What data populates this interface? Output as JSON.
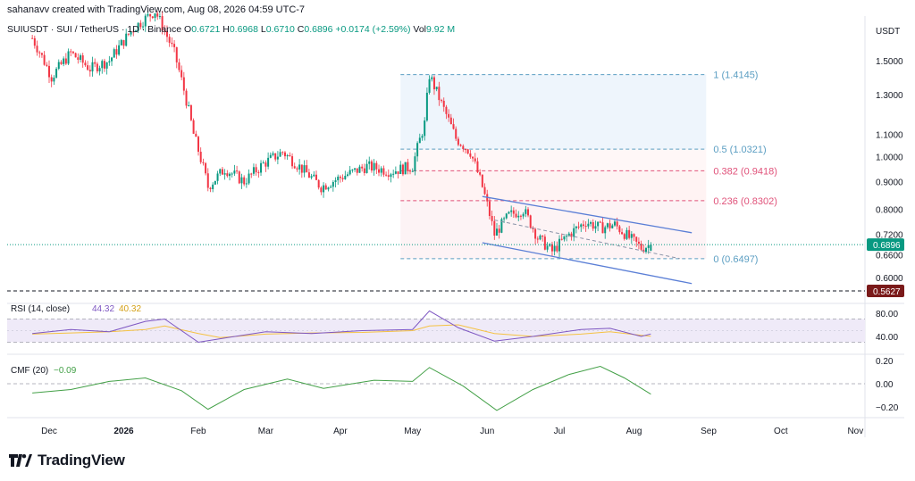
{
  "header": {
    "credit": "sahanavv created with TradingView.com, Aug 08, 2026 04:59 UTC-7",
    "symbol_label": "SUIUSDT · SUI / TetherUS · 1D · Binance",
    "ohlc": {
      "o_key": "O",
      "o": "0.6721",
      "h_key": "H",
      "h": "0.6968",
      "l_key": "L",
      "l": "0.6710",
      "c_key": "C",
      "c": "0.6896",
      "change": "+0.0174 (+2.59%)",
      "vol_key": "Vol",
      "vol": "9.92 M"
    }
  },
  "brand": {
    "name": "TradingView"
  },
  "colors": {
    "up": "#089981",
    "down": "#f23645",
    "fib_blue": "#5b9ec2",
    "fib_red": "#e0527a",
    "channel": "#5b7fd6",
    "rsi": "#7e57c2",
    "rsi_ma": "#f5c242",
    "cmf": "#43a047"
  },
  "chart_data": {
    "type": "candlestick",
    "panes": [
      "price",
      "RSI",
      "CMF"
    ],
    "x_ticks": [
      "Dec",
      "2026",
      "Feb",
      "Mar",
      "Apr",
      "May",
      "Jun",
      "Jul",
      "Aug",
      "Sep",
      "Oct",
      "Nov"
    ],
    "price": {
      "currency": "USDT",
      "scale": "log",
      "y_ticks": [
        "1.5000",
        "1.3000",
        "1.1000",
        "1.0000",
        "0.9000",
        "0.8000",
        "0.7200",
        "0.6600",
        "0.6000"
      ],
      "y_tick_values": [
        1.5,
        1.3,
        1.1,
        1.0,
        0.9,
        0.8,
        0.72,
        0.66,
        0.6
      ],
      "last_price": "0.6896",
      "horizontal_line": "0.5627",
      "close_trend": [
        {
          "x": "2025-11-24",
          "close": 1.65
        },
        {
          "x": "2025-12-02",
          "close": 1.4
        },
        {
          "x": "2025-12-10",
          "close": 1.55
        },
        {
          "x": "2025-12-18",
          "close": 1.45
        },
        {
          "x": "2025-12-26",
          "close": 1.5
        },
        {
          "x": "2026-01-05",
          "close": 1.72
        },
        {
          "x": "2026-01-14",
          "close": 1.85
        },
        {
          "x": "2026-01-22",
          "close": 1.55
        },
        {
          "x": "2026-01-30",
          "close": 1.1
        },
        {
          "x": "2026-02-05",
          "close": 0.88
        },
        {
          "x": "2026-02-12",
          "close": 0.95
        },
        {
          "x": "2026-02-20",
          "close": 0.9
        },
        {
          "x": "2026-02-28",
          "close": 0.97
        },
        {
          "x": "2026-03-08",
          "close": 1.02
        },
        {
          "x": "2026-03-16",
          "close": 0.95
        },
        {
          "x": "2026-03-24",
          "close": 0.88
        },
        {
          "x": "2026-04-02",
          "close": 0.92
        },
        {
          "x": "2026-04-12",
          "close": 0.96
        },
        {
          "x": "2026-04-22",
          "close": 0.94
        },
        {
          "x": "2026-05-01",
          "close": 0.96
        },
        {
          "x": "2026-05-06",
          "close": 1.15
        },
        {
          "x": "2026-05-08",
          "close": 1.41
        },
        {
          "x": "2026-05-13",
          "close": 1.25
        },
        {
          "x": "2026-05-19",
          "close": 1.08
        },
        {
          "x": "2026-05-25",
          "close": 1.02
        },
        {
          "x": "2026-05-30",
          "close": 0.88
        },
        {
          "x": "2026-06-04",
          "close": 0.72
        },
        {
          "x": "2026-06-10",
          "close": 0.78
        },
        {
          "x": "2026-06-16",
          "close": 0.8
        },
        {
          "x": "2026-06-22",
          "close": 0.71
        },
        {
          "x": "2026-06-28",
          "close": 0.67
        },
        {
          "x": "2026-07-05",
          "close": 0.72
        },
        {
          "x": "2026-07-12",
          "close": 0.76
        },
        {
          "x": "2026-07-18",
          "close": 0.74
        },
        {
          "x": "2026-07-24",
          "close": 0.75
        },
        {
          "x": "2026-07-30",
          "close": 0.71
        },
        {
          "x": "2026-08-04",
          "close": 0.68
        },
        {
          "x": "2026-08-08",
          "close": 0.6896
        }
      ],
      "fibonacci": [
        {
          "label": "1 (1.4145)",
          "value": 1.4145,
          "color": "#5b9ec2"
        },
        {
          "label": "0.5 (1.0321)",
          "value": 1.0321,
          "color": "#5b9ec2"
        },
        {
          "label": "0.382 (0.9418)",
          "value": 0.9418,
          "color": "#e0527a"
        },
        {
          "label": "0.236 (0.8302)",
          "value": 0.8302,
          "color": "#e0527a"
        },
        {
          "label": "0 (0.6497)",
          "value": 0.6497,
          "color": "#5b9ec2"
        }
      ],
      "channel": {
        "upper": [
          {
            "x": "2026-05-30",
            "y": 0.845
          },
          {
            "x": "2026-08-25",
            "y": 0.725
          }
        ],
        "middle": [
          {
            "x": "2026-06-04",
            "y": 0.765
          },
          {
            "x": "2026-08-20",
            "y": 0.65
          }
        ],
        "lower": [
          {
            "x": "2026-05-30",
            "y": 0.695
          },
          {
            "x": "2026-08-25",
            "y": 0.585
          }
        ]
      }
    },
    "rsi": {
      "label": "RSI (14, close)",
      "value": "44.32",
      "ma_value": "40.32",
      "y_ticks": [
        "80.00",
        "40.00"
      ],
      "bands": [
        70,
        30
      ],
      "series": [
        {
          "x": "2025-11-24",
          "rsi": 45,
          "ma": 44
        },
        {
          "x": "2025-12-10",
          "rsi": 52,
          "ma": 46
        },
        {
          "x": "2025-12-26",
          "rsi": 48,
          "ma": 48
        },
        {
          "x": "2026-01-10",
          "rsi": 66,
          "ma": 52
        },
        {
          "x": "2026-01-18",
          "rsi": 70,
          "ma": 58
        },
        {
          "x": "2026-02-01",
          "rsi": 30,
          "ma": 45
        },
        {
          "x": "2026-02-10",
          "rsi": 36,
          "ma": 38
        },
        {
          "x": "2026-03-01",
          "rsi": 48,
          "ma": 44
        },
        {
          "x": "2026-03-20",
          "rsi": 45,
          "ma": 46
        },
        {
          "x": "2026-04-10",
          "rsi": 50,
          "ma": 47
        },
        {
          "x": "2026-05-01",
          "rsi": 52,
          "ma": 50
        },
        {
          "x": "2026-05-08",
          "rsi": 84,
          "ma": 58
        },
        {
          "x": "2026-05-20",
          "rsi": 55,
          "ma": 60
        },
        {
          "x": "2026-06-04",
          "rsi": 32,
          "ma": 45
        },
        {
          "x": "2026-06-20",
          "rsi": 40,
          "ma": 40
        },
        {
          "x": "2026-07-10",
          "rsi": 52,
          "ma": 44
        },
        {
          "x": "2026-07-22",
          "rsi": 54,
          "ma": 48
        },
        {
          "x": "2026-08-04",
          "rsi": 40,
          "ma": 42
        },
        {
          "x": "2026-08-08",
          "rsi": 44.32,
          "ma": 40.32
        }
      ]
    },
    "cmf": {
      "label": "CMF (20)",
      "value": "−0.09",
      "y_ticks": [
        "0.20",
        "0.00",
        "−0.20"
      ],
      "series": [
        {
          "x": "2025-11-24",
          "v": -0.08
        },
        {
          "x": "2025-12-10",
          "v": -0.05
        },
        {
          "x": "2025-12-26",
          "v": 0.02
        },
        {
          "x": "2026-01-10",
          "v": 0.05
        },
        {
          "x": "2026-01-25",
          "v": -0.06
        },
        {
          "x": "2026-02-05",
          "v": -0.22
        },
        {
          "x": "2026-02-20",
          "v": -0.05
        },
        {
          "x": "2026-03-10",
          "v": 0.04
        },
        {
          "x": "2026-03-25",
          "v": -0.04
        },
        {
          "x": "2026-04-15",
          "v": 0.03
        },
        {
          "x": "2026-05-01",
          "v": 0.02
        },
        {
          "x": "2026-05-08",
          "v": 0.14
        },
        {
          "x": "2026-05-22",
          "v": -0.02
        },
        {
          "x": "2026-06-05",
          "v": -0.23
        },
        {
          "x": "2026-06-20",
          "v": -0.05
        },
        {
          "x": "2026-07-05",
          "v": 0.08
        },
        {
          "x": "2026-07-18",
          "v": 0.15
        },
        {
          "x": "2026-07-28",
          "v": 0.05
        },
        {
          "x": "2026-08-08",
          "v": -0.09
        }
      ]
    }
  }
}
